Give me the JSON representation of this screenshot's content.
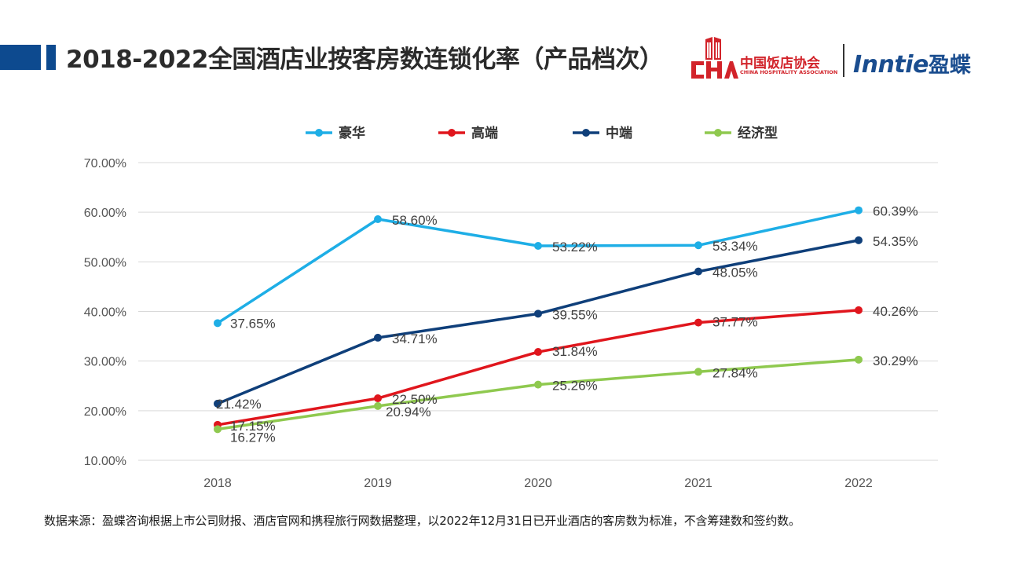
{
  "header": {
    "title": "2018-2022全国酒店业按客房数连锁化率（产品档次）",
    "logo_cha_cn": "中国饭店协会",
    "logo_cha_en": "CHINA HOSPITALITY ASSOCIATION",
    "logo_inntie_en": "Inntie",
    "logo_inntie_cn": "盈蝶",
    "accent_color": "#0d4a8f"
  },
  "footnote": "数据来源：盈蝶咨询根据上市公司财报、酒店官网和携程旅行网数据整理，以2022年12月31日已开业酒店的客房数为标准，不含筹建数和签约数。",
  "chart_data": {
    "type": "line",
    "title": "",
    "xlabel": "",
    "ylabel": "",
    "categories": [
      "2018",
      "2019",
      "2020",
      "2021",
      "2022"
    ],
    "ylim": [
      10,
      70
    ],
    "yticks": [
      10,
      20,
      30,
      40,
      50,
      60,
      70
    ],
    "ytick_labels": [
      "10.00%",
      "20.00%",
      "30.00%",
      "40.00%",
      "50.00%",
      "60.00%",
      "70.00%"
    ],
    "grid": true,
    "legend_position": "top-center",
    "series": [
      {
        "name": "豪华",
        "color": "#1eaee6",
        "values": [
          37.65,
          58.6,
          53.22,
          53.34,
          60.39
        ],
        "labels": [
          "37.65%",
          "58.60%",
          "53.22%",
          "53.34%",
          "60.39%"
        ]
      },
      {
        "name": "高端",
        "color": "#e0161d",
        "values": [
          17.15,
          22.5,
          31.84,
          37.77,
          40.26
        ],
        "labels": [
          "17.15%",
          "22.50%",
          "31.84%",
          "37.77%",
          "40.26%"
        ]
      },
      {
        "name": "中端",
        "color": "#0f3f7a",
        "values": [
          21.42,
          34.71,
          39.55,
          48.05,
          54.35
        ],
        "labels": [
          "21.42%",
          "34.71%",
          "39.55%",
          "48.05%",
          "54.35%"
        ]
      },
      {
        "name": "经济型",
        "color": "#8fc94f",
        "values": [
          16.27,
          20.94,
          25.26,
          27.84,
          30.29
        ],
        "labels": [
          "16.27%",
          "20.94%",
          "25.26%",
          "27.84%",
          "30.29%"
        ]
      }
    ]
  }
}
